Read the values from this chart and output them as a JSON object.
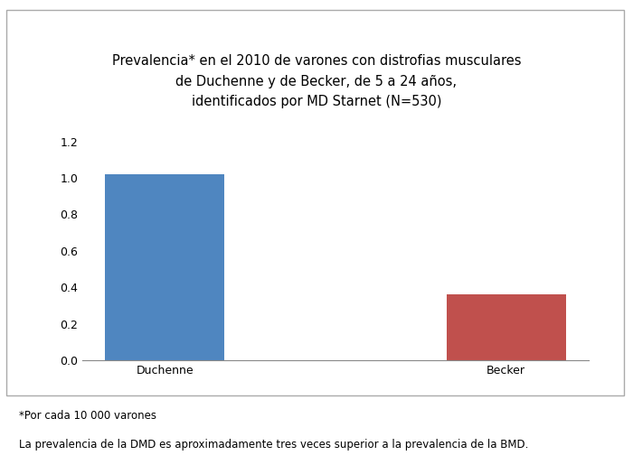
{
  "categories": [
    "Duchenne",
    "Becker"
  ],
  "values": [
    1.02,
    0.36
  ],
  "bar_colors": [
    "#4F86C0",
    "#C0504D"
  ],
  "title_line1": "Prevalencia* en el 2010 de varones con distrofias musculares",
  "title_line2": "de Duchenne y de Becker, de 5 a 24 años,",
  "title_line3": "identificados por MD Starnet (N=530)",
  "ylim": [
    0,
    1.3
  ],
  "yticks": [
    0,
    0.2,
    0.4,
    0.6,
    0.8,
    1.0,
    1.2
  ],
  "footnote1": "*Por cada 10 000 varones",
  "footnote2": "La prevalencia de la DMD es aproximadamente tres veces superior a la prevalencia de la BMD.",
  "background_color": "#ffffff",
  "title_fontsize": 10.5,
  "tick_fontsize": 9,
  "footnote_fontsize": 8.5,
  "bar_width": 0.35
}
